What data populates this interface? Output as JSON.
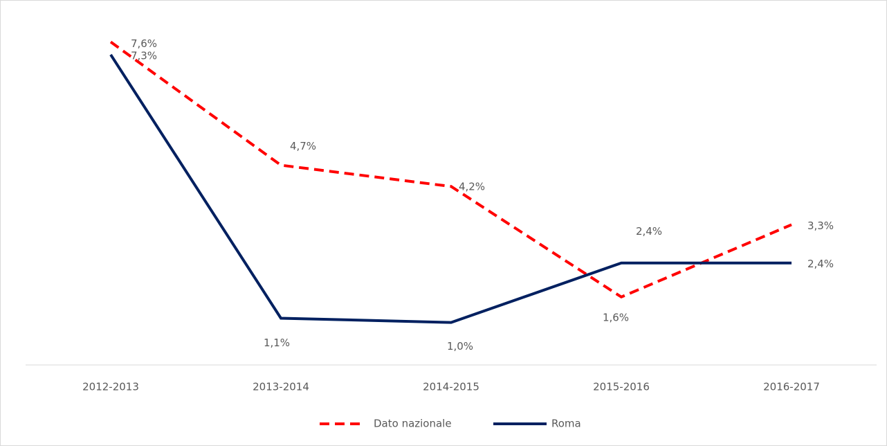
{
  "chart_data": {
    "type": "line",
    "categories": [
      "2012-2013",
      "2013-2014",
      "2014-2015",
      "2015-2016",
      "2016-2017"
    ],
    "series": [
      {
        "name": "Dato nazionale",
        "color": "#ff0000",
        "dashed": true,
        "values": [
          7.6,
          4.7,
          4.2,
          1.6,
          3.3
        ],
        "value_labels": [
          "7,6%",
          "4,7%",
          "4,2%",
          "1,6%",
          "3,3%"
        ]
      },
      {
        "name": "Roma",
        "color": "#002060",
        "dashed": false,
        "values": [
          7.3,
          1.1,
          1.0,
          2.4,
          2.4
        ],
        "value_labels": [
          "7,3%",
          "1,1%",
          "1,0%",
          "2,4%",
          "2,4%"
        ]
      }
    ],
    "ylim": [
      0,
      8
    ],
    "legend": "bottom"
  }
}
